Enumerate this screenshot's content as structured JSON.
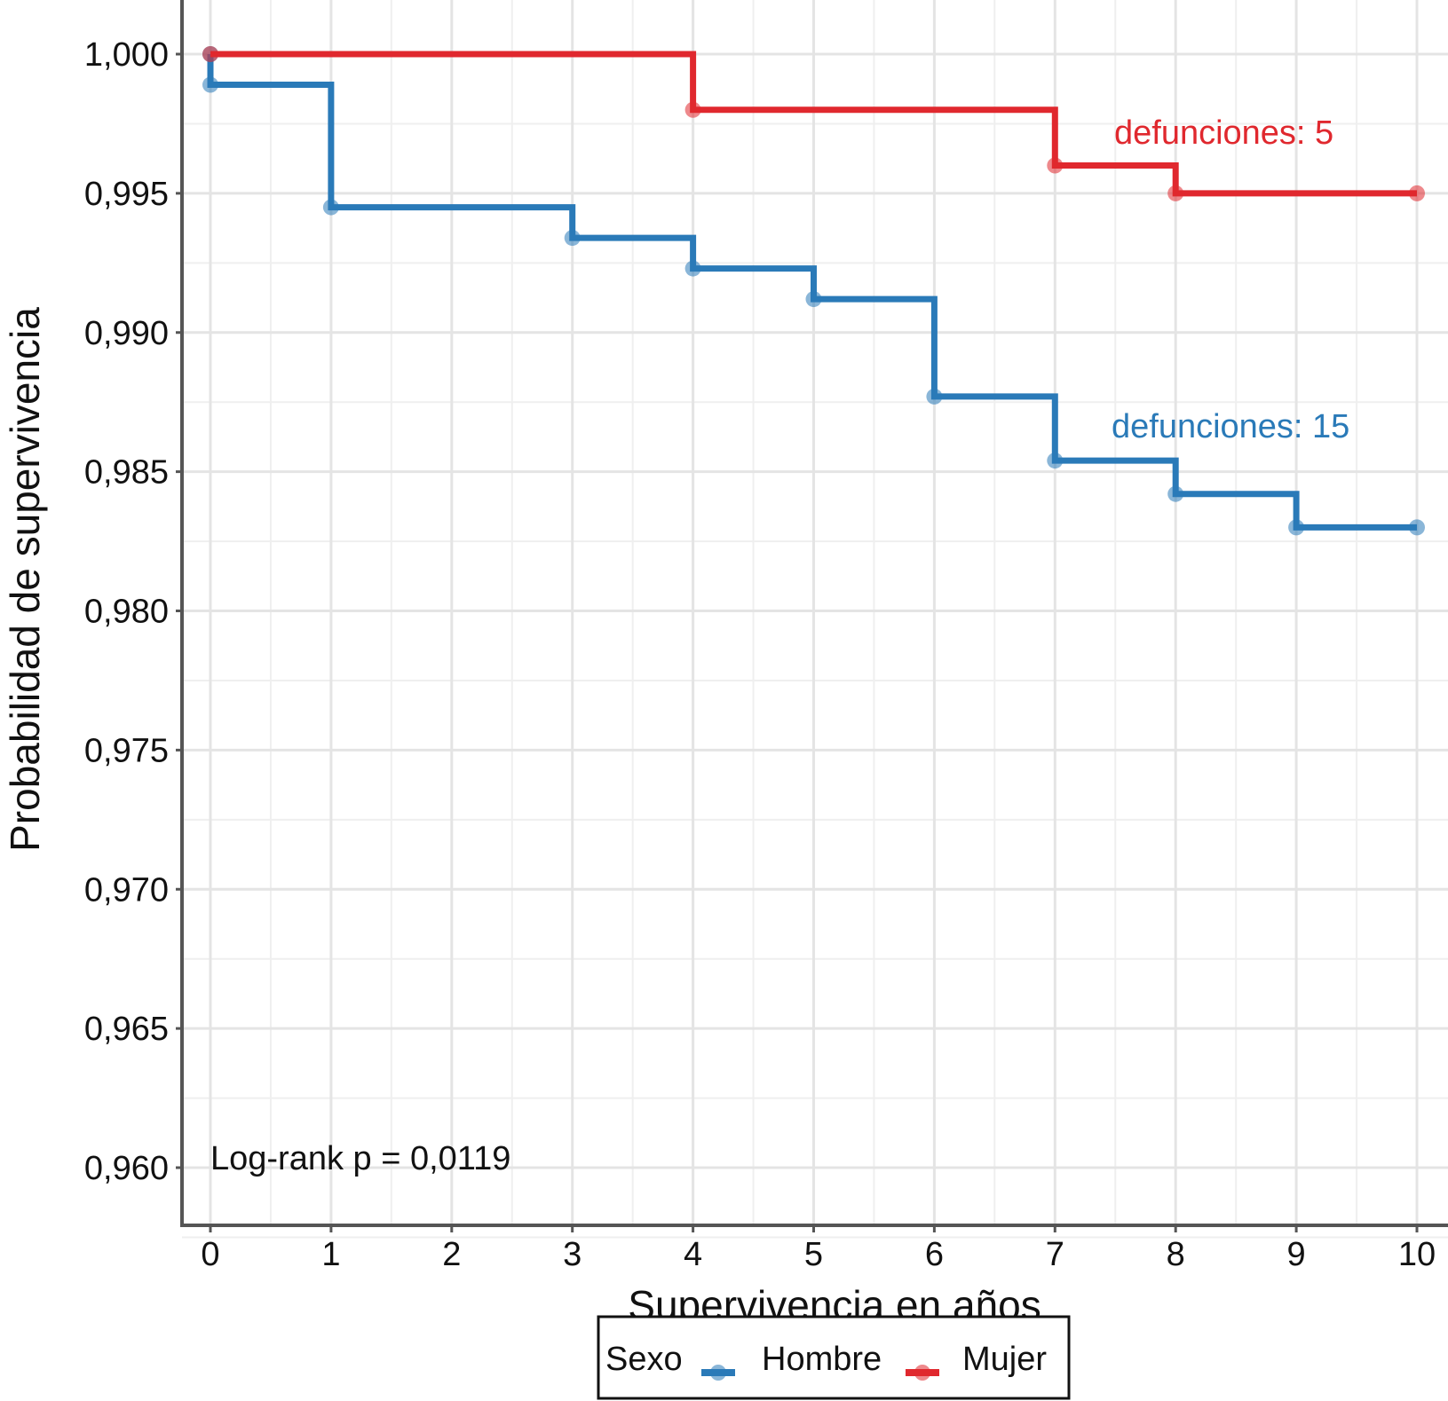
{
  "chart_data": {
    "type": "line",
    "step": true,
    "xlabel": "Supervivencia en años",
    "ylabel": "Probabilidad de supervivencia",
    "xlim": [
      0,
      10
    ],
    "ylim": [
      0.9595,
      1.0015
    ],
    "x_ticks": [
      "0",
      "1",
      "2",
      "3",
      "4",
      "5",
      "6",
      "7",
      "8",
      "9",
      "10"
    ],
    "y_ticks": [
      {
        "value": 0.96,
        "label": "0,960"
      },
      {
        "value": 0.965,
        "label": "0,965"
      },
      {
        "value": 0.97,
        "label": "0,970"
      },
      {
        "value": 0.975,
        "label": "0,975"
      },
      {
        "value": 0.98,
        "label": "0,980"
      },
      {
        "value": 0.985,
        "label": "0,985"
      },
      {
        "value": 0.99,
        "label": "0,990"
      },
      {
        "value": 0.995,
        "label": "0,995"
      },
      {
        "value": 1.0,
        "label": "1,000"
      }
    ],
    "grid": true,
    "series": [
      {
        "name": "Hombre",
        "color": "#2a7ab8",
        "x": [
          0,
          0,
          1,
          3,
          4,
          5,
          6,
          7,
          8,
          9,
          10
        ],
        "values": [
          1.0,
          0.9989,
          0.9945,
          0.9934,
          0.9923,
          0.9912,
          0.9877,
          0.9854,
          0.9842,
          0.983,
          0.983
        ],
        "annotation": "defunciones: 15"
      },
      {
        "name": "Mujer",
        "color": "#e0282e",
        "x": [
          0,
          4,
          7,
          8,
          10
        ],
        "values": [
          1.0,
          0.998,
          0.996,
          0.995,
          0.995
        ],
        "annotation": "defunciones: 5"
      }
    ],
    "p_value_text": "Log-rank p = 0,0119",
    "legend": {
      "title": "Sexo",
      "position": "bottom-center",
      "entries": [
        "Hombre",
        "Mujer"
      ]
    }
  }
}
